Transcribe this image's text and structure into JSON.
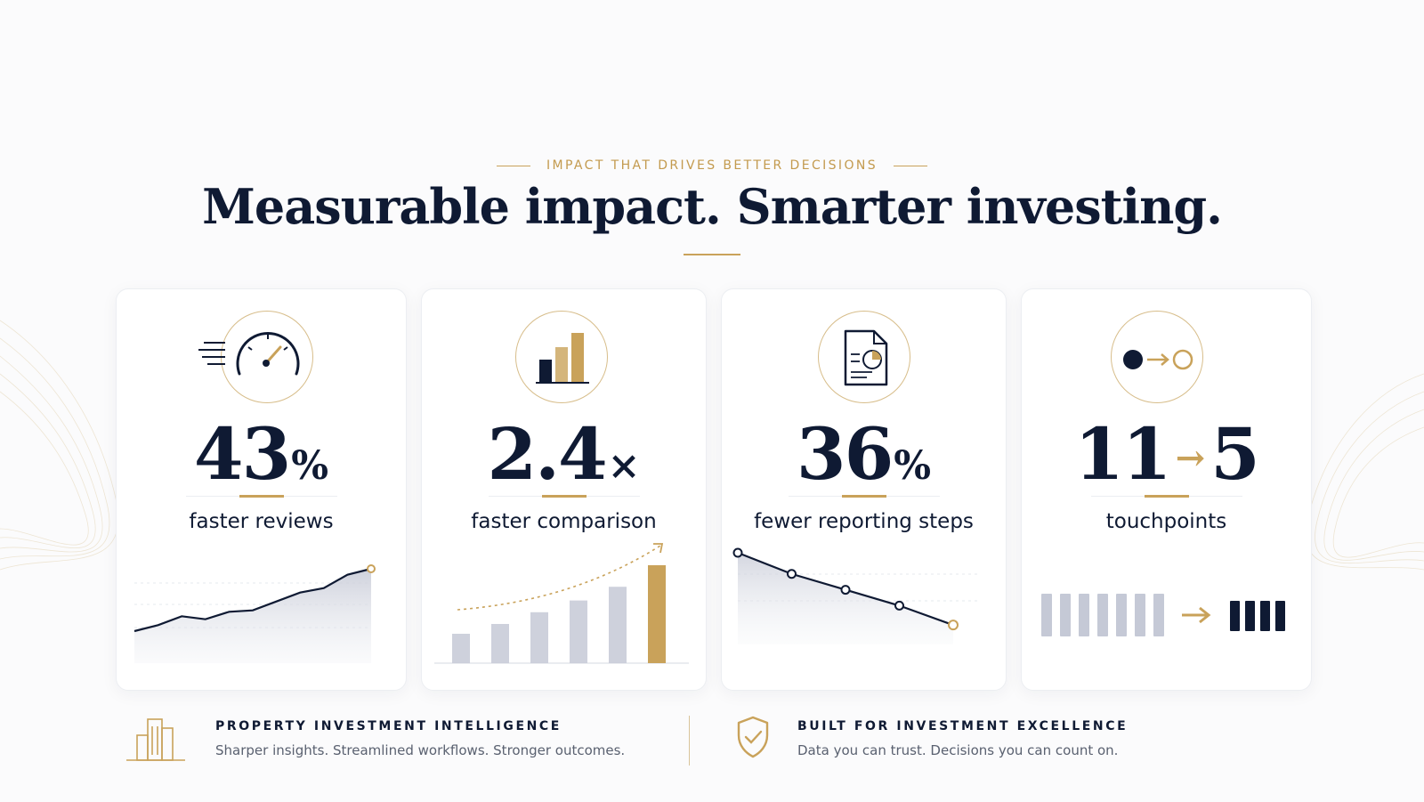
{
  "header": {
    "eyebrow": "IMPACT THAT DRIVES BETTER DECISIONS",
    "headline": "Measurable impact. Smarter investing."
  },
  "colors": {
    "navy": "#0f1a33",
    "gold": "#c9a25a",
    "gray_bar": "#c5c9d6"
  },
  "cards": [
    {
      "icon": "speedometer-icon",
      "value": "43",
      "suffix": "%",
      "label": "faster reviews",
      "chart": {
        "type": "area-line",
        "values": [
          6,
          10,
          16,
          14,
          19,
          20,
          26,
          32,
          35,
          44,
          48
        ]
      }
    },
    {
      "icon": "bar-chart-icon",
      "value": "2.4",
      "suffix": "×",
      "label": "faster comparison",
      "chart": {
        "type": "bar",
        "values": [
          30,
          40,
          52,
          64,
          78,
          100
        ],
        "highlight_last": true
      }
    },
    {
      "icon": "report-document-icon",
      "value": "36",
      "suffix": "%",
      "label": "fewer reporting steps",
      "chart": {
        "type": "descending-line",
        "values": [
          100,
          76,
          58,
          40,
          18
        ]
      }
    },
    {
      "icon": "dot-arrow-circle-icon",
      "from": "11",
      "arrow": "→",
      "to": "5",
      "label": "touchpoints",
      "chart": {
        "type": "count-compare",
        "before": 7,
        "after": 4
      }
    }
  ],
  "footer": {
    "left": {
      "title": "PROPERTY INVESTMENT INTELLIGENCE",
      "subtitle": "Sharper insights. Streamlined workflows. Stronger outcomes."
    },
    "right": {
      "title": "BUILT FOR INVESTMENT EXCELLENCE",
      "subtitle": "Data you can trust. Decisions you can count on."
    }
  }
}
